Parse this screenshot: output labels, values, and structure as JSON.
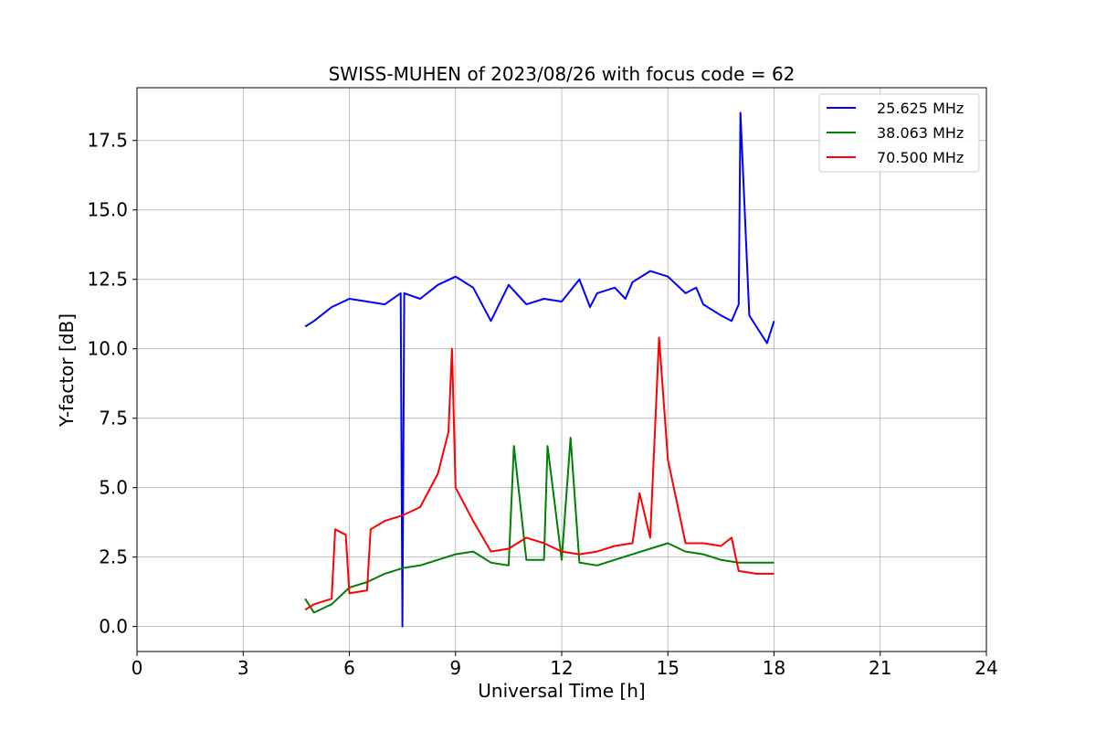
{
  "chart_data": {
    "type": "line",
    "title": "SWISS-MUHEN of 2023/08/26 with focus code = 62",
    "xlabel": "Universal Time [h]",
    "ylabel": "Y-factor [dB]",
    "xlim": [
      0,
      24
    ],
    "ylim": [
      -0.9,
      19.4
    ],
    "xticks": [
      0,
      3,
      6,
      9,
      12,
      15,
      18,
      21,
      24
    ],
    "xtick_labels": [
      "0",
      "3",
      "6",
      "9",
      "12",
      "15",
      "18",
      "21",
      "24"
    ],
    "yticks": [
      0,
      2.5,
      5,
      7.5,
      10,
      12.5,
      15,
      17.5
    ],
    "ytick_labels": [
      "0.0",
      "2.5",
      "5.0",
      "7.5",
      "10.0",
      "12.5",
      "15.0",
      "17.5"
    ],
    "grid": true,
    "legend_position": "top-right",
    "series": [
      {
        "name": "25.625 MHz",
        "color": "#0000ff",
        "x": [
          4.75,
          5.0,
          5.5,
          6.0,
          6.5,
          7.0,
          7.45,
          7.5,
          7.55,
          8.0,
          8.5,
          9.0,
          9.5,
          10.0,
          10.5,
          11.0,
          11.5,
          12.0,
          12.5,
          12.8,
          13.0,
          13.5,
          13.8,
          14.0,
          14.5,
          15.0,
          15.5,
          15.8,
          16.0,
          16.5,
          16.8,
          17.0,
          17.05,
          17.3,
          17.5,
          17.8,
          18.0
        ],
        "y": [
          10.8,
          11.0,
          11.5,
          11.8,
          11.7,
          11.6,
          12.0,
          0.0,
          12.0,
          11.8,
          12.3,
          12.6,
          12.2,
          11.0,
          12.3,
          11.6,
          11.8,
          11.7,
          12.5,
          11.5,
          12.0,
          12.2,
          11.8,
          12.4,
          12.8,
          12.6,
          12.0,
          12.2,
          11.6,
          11.2,
          11.0,
          11.6,
          18.5,
          11.2,
          10.8,
          10.2,
          11.0
        ]
      },
      {
        "name": "38.063 MHz",
        "color": "#008000",
        "x": [
          4.75,
          5.0,
          5.5,
          6.0,
          6.5,
          7.0,
          7.5,
          8.0,
          8.5,
          9.0,
          9.5,
          10.0,
          10.5,
          10.65,
          11.0,
          11.5,
          11.6,
          12.0,
          12.25,
          12.5,
          13.0,
          13.5,
          14.0,
          14.5,
          15.0,
          15.5,
          16.0,
          16.5,
          17.0,
          17.5,
          18.0
        ],
        "y": [
          1.0,
          0.5,
          0.8,
          1.4,
          1.6,
          1.9,
          2.1,
          2.2,
          2.4,
          2.6,
          2.7,
          2.3,
          2.2,
          6.5,
          2.4,
          2.4,
          6.5,
          2.4,
          6.8,
          2.3,
          2.2,
          2.4,
          2.6,
          2.8,
          3.0,
          2.7,
          2.6,
          2.4,
          2.3,
          2.3,
          2.3
        ]
      },
      {
        "name": "70.500 MHz",
        "color": "#ff0000",
        "x": [
          4.75,
          5.0,
          5.5,
          5.6,
          5.9,
          6.0,
          6.5,
          6.6,
          7.0,
          7.5,
          8.0,
          8.5,
          8.8,
          8.9,
          9.0,
          9.5,
          10.0,
          10.5,
          11.0,
          11.5,
          12.0,
          12.5,
          13.0,
          13.5,
          14.0,
          14.2,
          14.5,
          14.75,
          15.0,
          15.5,
          16.0,
          16.5,
          16.8,
          17.0,
          17.5,
          18.0
        ],
        "y": [
          0.6,
          0.8,
          1.0,
          3.5,
          3.3,
          1.2,
          1.3,
          3.5,
          3.8,
          4.0,
          4.3,
          5.5,
          7.0,
          10.0,
          5.0,
          3.8,
          2.7,
          2.8,
          3.2,
          3.0,
          2.7,
          2.6,
          2.7,
          2.9,
          3.0,
          4.8,
          3.2,
          10.4,
          6.0,
          3.0,
          3.0,
          2.9,
          3.2,
          2.0,
          1.9,
          1.9
        ]
      }
    ]
  }
}
